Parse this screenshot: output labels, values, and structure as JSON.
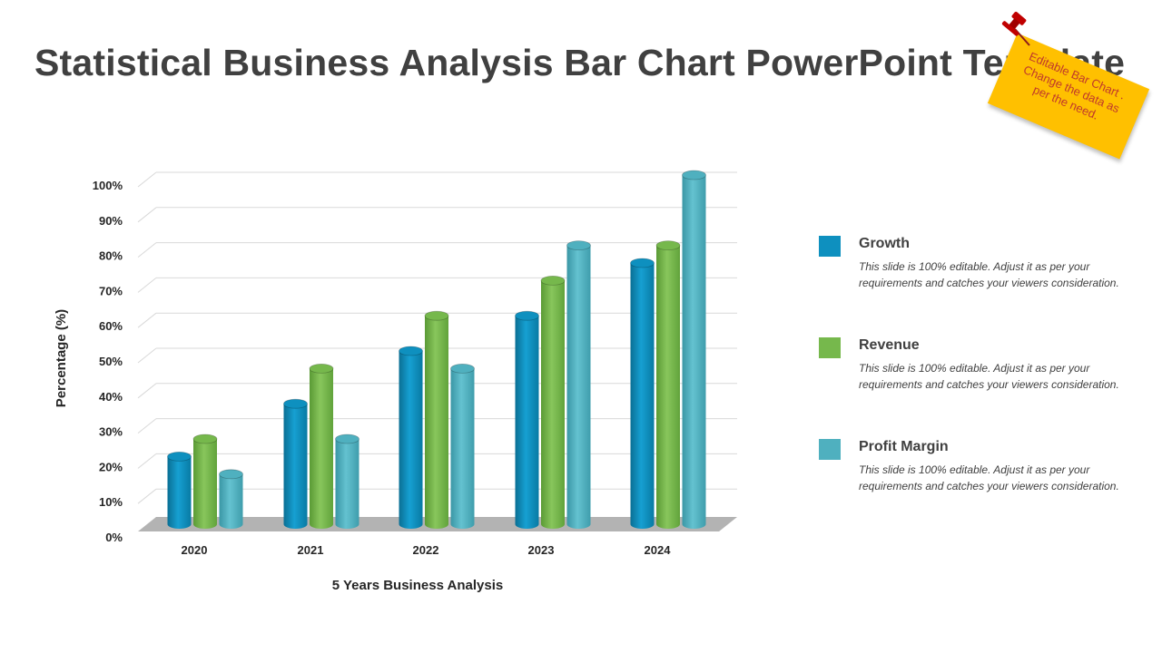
{
  "title": "Statistical Business Analysis Bar Chart PowerPoint Template",
  "sticky_note": {
    "line1": "Editable Bar Chart .",
    "line2": "Change the data as",
    "line3": "per the need."
  },
  "colors": {
    "growth": "#0e90bf",
    "revenue": "#76b84c",
    "profit_margin": "#4fb0bf",
    "floor": "#b3b3b3",
    "grid": "#d9d9d9"
  },
  "legend": [
    {
      "name": "Growth",
      "color": "#0e90bf",
      "desc": "This slide is 100%  editable. Adjust it as per your requirements and catches your viewers consideration."
    },
    {
      "name": "Revenue",
      "color": "#76b84c",
      "desc": "This slide is 100%  editable. Adjust it as per your requirements and catches your viewers consideration."
    },
    {
      "name": "Profit Margin",
      "color": "#4fb0bf",
      "desc": "This slide is 100%  editable. Adjust it as per your requirements and catches your viewers consideration."
    }
  ],
  "chart_data": {
    "type": "bar",
    "title": "",
    "xlabel": "5 Years Business Analysis",
    "ylabel": "Percentage (%)",
    "categories": [
      "2020",
      "2021",
      "2022",
      "2023",
      "2024"
    ],
    "ylim": [
      0,
      100
    ],
    "yticks": [
      "0%",
      "10%",
      "20%",
      "30%",
      "40%",
      "50%",
      "60%",
      "70%",
      "80%",
      "90%",
      "100%"
    ],
    "grid": true,
    "series": [
      {
        "name": "Growth",
        "values": [
          20,
          35,
          50,
          60,
          75
        ]
      },
      {
        "name": "Revenue",
        "values": [
          25,
          45,
          60,
          70,
          80
        ]
      },
      {
        "name": "Profit Margin",
        "values": [
          15,
          25,
          45,
          80,
          100
        ]
      }
    ]
  }
}
